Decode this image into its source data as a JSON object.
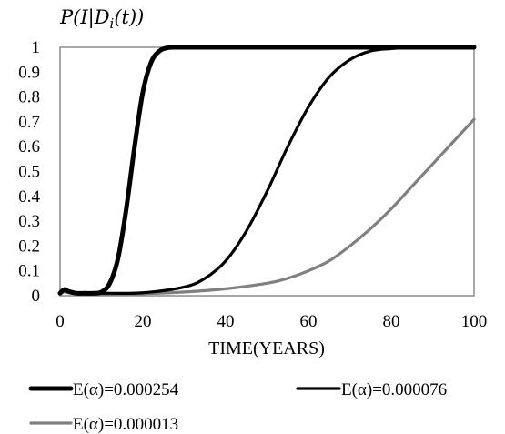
{
  "chart_data": {
    "type": "line",
    "ylabel": "P(I|Di(t))",
    "xlabel": "TIME(YEARS)",
    "xlim": [
      0,
      100
    ],
    "ylim": [
      0,
      1
    ],
    "x_ticks": [
      0,
      20,
      40,
      60,
      80,
      100
    ],
    "y_ticks": [
      0,
      0.1,
      0.2,
      0.3,
      0.4,
      0.5,
      0.6,
      0.7,
      0.8,
      0.9,
      1
    ],
    "y_tick_labels": [
      "0",
      "0.1",
      "0.2",
      "0.3",
      "0.4",
      "0.5",
      "0.6",
      "0.7",
      "0.8",
      "0.9",
      "1"
    ],
    "x_tick_labels": [
      "0",
      "20",
      "40",
      "60",
      "80",
      "100"
    ],
    "grid": false,
    "legend_position": "bottom",
    "series": [
      {
        "name": "E(α)=0.000254",
        "color": "#000000",
        "weight": "thick",
        "x": [
          0,
          1,
          2,
          4,
          6,
          8,
          10,
          12,
          14,
          16,
          18,
          20,
          22,
          24,
          26,
          28,
          30,
          40,
          60,
          80,
          100
        ],
        "y": [
          0.01,
          0.025,
          0.018,
          0.01,
          0.01,
          0.01,
          0.015,
          0.05,
          0.15,
          0.35,
          0.6,
          0.82,
          0.94,
          0.985,
          0.998,
          1,
          1,
          1,
          1,
          1,
          1
        ]
      },
      {
        "name": "E(α)=0.000076",
        "color": "#000000",
        "weight": "medium",
        "x": [
          0,
          1,
          2,
          4,
          10,
          20,
          30,
          35,
          40,
          45,
          50,
          55,
          60,
          65,
          70,
          75,
          80,
          85,
          90,
          100
        ],
        "y": [
          0.01,
          0.02,
          0.015,
          0.01,
          0.01,
          0.012,
          0.035,
          0.07,
          0.14,
          0.26,
          0.42,
          0.6,
          0.76,
          0.88,
          0.95,
          0.985,
          0.995,
          1,
          1,
          1
        ]
      },
      {
        "name": "E(α)=0.000013",
        "color": "#808080",
        "weight": "medium",
        "x": [
          0,
          1,
          2,
          4,
          10,
          20,
          30,
          40,
          50,
          55,
          60,
          65,
          70,
          75,
          80,
          85,
          90,
          95,
          100
        ],
        "y": [
          0.01,
          0.015,
          0.012,
          0.008,
          0.006,
          0.008,
          0.015,
          0.028,
          0.05,
          0.07,
          0.1,
          0.14,
          0.2,
          0.27,
          0.35,
          0.44,
          0.53,
          0.62,
          0.71
        ]
      }
    ]
  }
}
